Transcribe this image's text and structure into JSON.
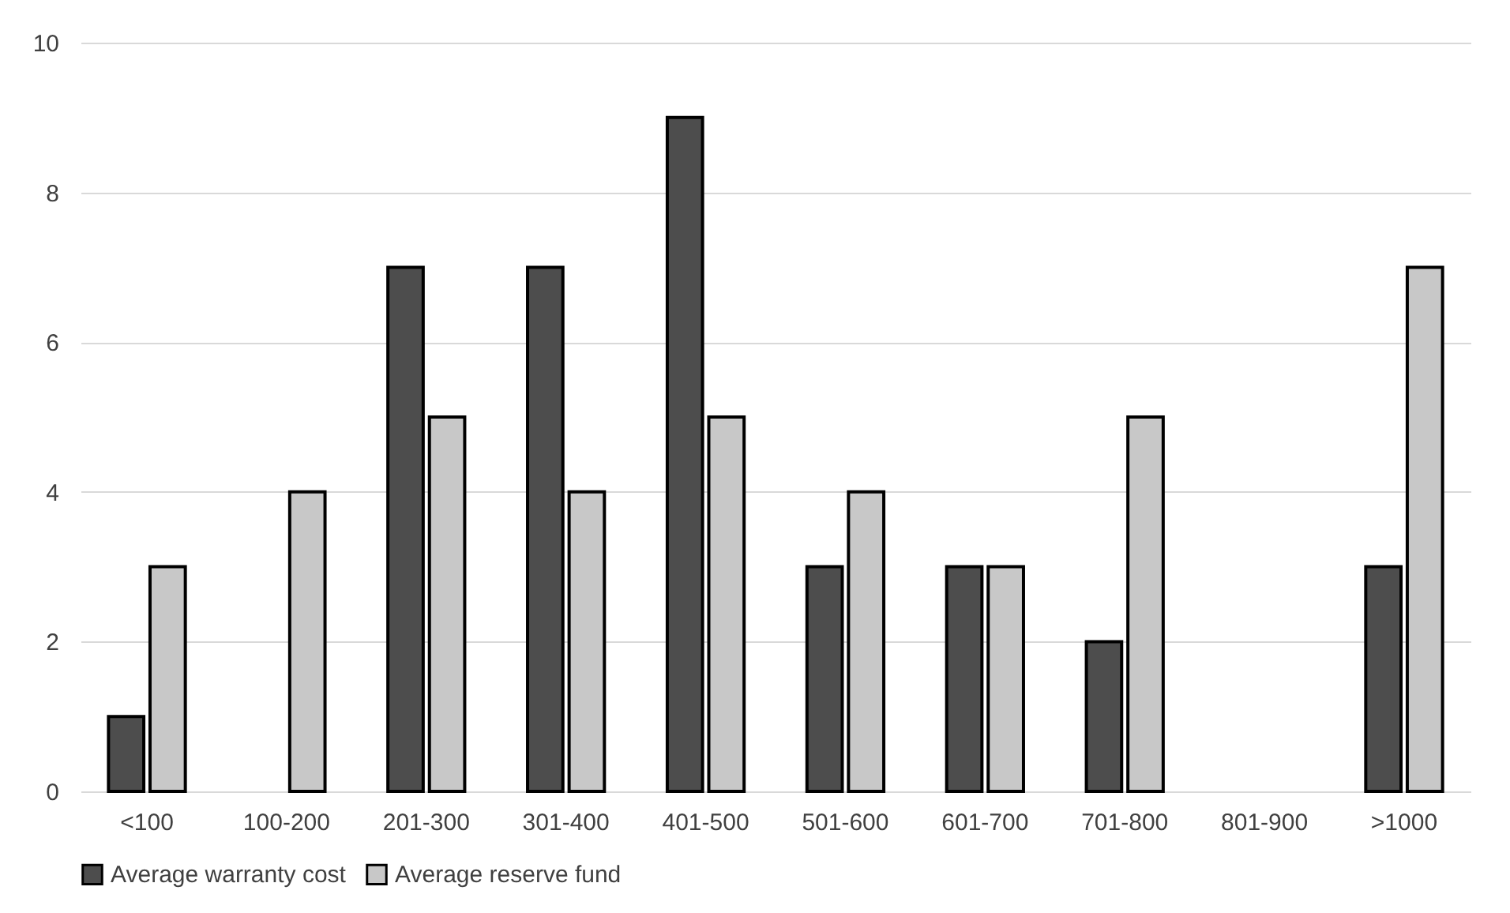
{
  "chart_data": {
    "type": "bar",
    "categories": [
      "<100",
      "100-200",
      "201-300",
      "301-400",
      "401-500",
      "501-600",
      "601-700",
      "701-800",
      "801-900",
      ">1000"
    ],
    "series": [
      {
        "name": "Average warranty cost",
        "color": "#4d4d4d",
        "values": [
          1,
          0,
          7,
          7,
          9,
          3,
          3,
          2,
          0,
          3
        ]
      },
      {
        "name": "Average reserve fund",
        "color": "#c8c8c8",
        "values": [
          3,
          4,
          5,
          4,
          5,
          4,
          3,
          5,
          0,
          7
        ]
      }
    ],
    "ylim": [
      0,
      10
    ],
    "yticks": [
      0,
      2,
      4,
      6,
      8,
      10
    ],
    "grid": "y",
    "legend": "bottom"
  }
}
